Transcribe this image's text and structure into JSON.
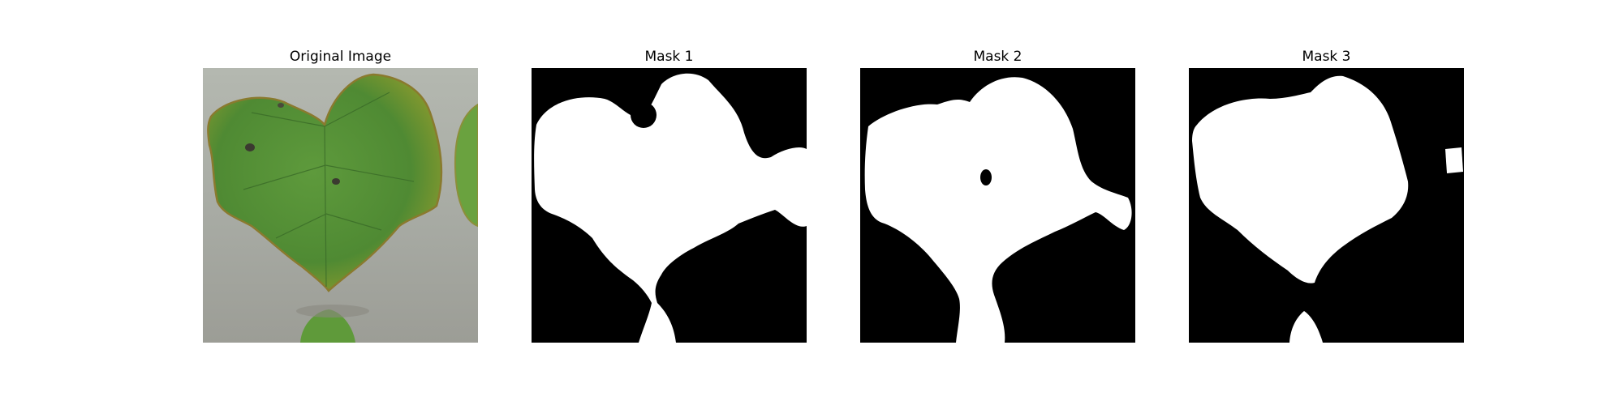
{
  "figure": {
    "panels": [
      {
        "title": "Original Image"
      },
      {
        "title": "Mask 1"
      },
      {
        "title": "Mask 2"
      },
      {
        "title": "Mask 3"
      }
    ]
  },
  "colors": {
    "background": "#ffffff",
    "mask_background": "#000000",
    "mask_foreground": "#ffffff",
    "photo_background": "#a8aba5",
    "leaf_green": "#5f9a3e",
    "leaf_dark": "#3f6f2a",
    "leaf_edge": "#8a7a2e"
  }
}
